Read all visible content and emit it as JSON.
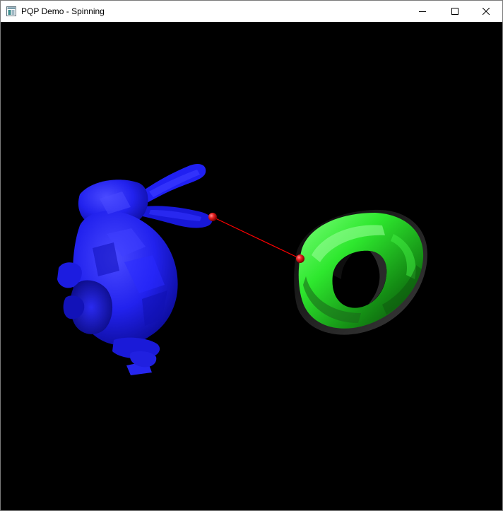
{
  "window": {
    "title": "PQP Demo - Spinning",
    "icon": "app-window-icon",
    "controls": {
      "minimize_icon": "minimize-icon",
      "maximize_icon": "maximize-icon",
      "close_icon": "close-icon"
    }
  },
  "scene": {
    "background_color": "#000000",
    "objects": [
      {
        "name": "bunny",
        "color": "#1a1aff"
      },
      {
        "name": "torus",
        "color": "#22ee22"
      }
    ],
    "closest_points_color": "#ff2020",
    "distance_line_color": "#ff0000"
  }
}
